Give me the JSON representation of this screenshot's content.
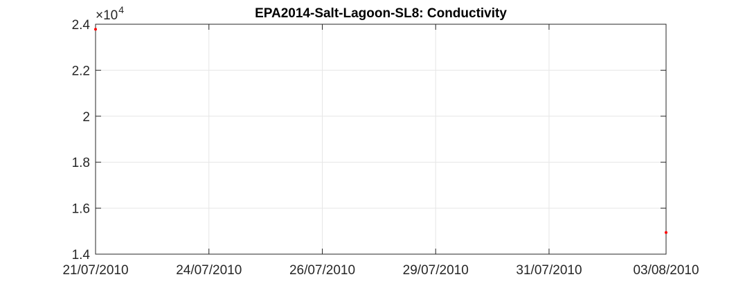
{
  "chart_data": {
    "type": "scatter",
    "title": "EPA2014-Salt-Lagoon-SL8: Conductivity",
    "xlabel": "",
    "ylabel": "",
    "x_axis": {
      "type": "date",
      "range": [
        "2010-07-21",
        "2010-08-03"
      ],
      "ticks": [
        {
          "value": "2010-07-21",
          "label": "21/07/2010"
        },
        {
          "value": "2010-07-23T14:00:00",
          "label": "24/07/2010"
        },
        {
          "value": "2010-07-26T04:00:00",
          "label": "26/07/2010"
        },
        {
          "value": "2010-07-28T18:00:00",
          "label": "29/07/2010"
        },
        {
          "value": "2010-07-31T08:00:00",
          "label": "31/07/2010"
        },
        {
          "value": "2010-08-03",
          "label": "03/08/2010"
        }
      ]
    },
    "y_axis": {
      "range": [
        14000,
        24000
      ],
      "ticks": [
        {
          "value": 14000,
          "label": "1.4"
        },
        {
          "value": 16000,
          "label": "1.6"
        },
        {
          "value": 18000,
          "label": "1.8"
        },
        {
          "value": 20000,
          "label": "2"
        },
        {
          "value": 22000,
          "label": "2.2"
        },
        {
          "value": 24000,
          "label": "2.4"
        }
      ],
      "exponent_base": "×10",
      "exponent_power": "4"
    },
    "grid": true,
    "series": [
      {
        "color": "#ff0000",
        "points": [
          {
            "x": "2010-07-21",
            "y": 23780
          },
          {
            "x": "2010-08-03",
            "y": 14940
          }
        ]
      }
    ]
  }
}
